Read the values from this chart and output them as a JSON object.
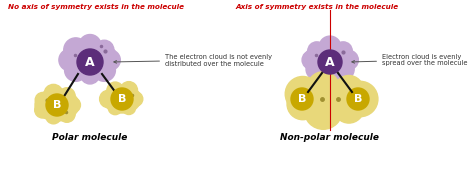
{
  "bg_color": "#ffffff",
  "left_title": "No axis of symmetry exists in the molecule",
  "right_title": "Axis of symmetry exists in the molecule",
  "left_label": "Polar molecule",
  "right_label": "Non-polar molecule",
  "left_annotation": "The electron cloud is not evenly\ndistributed over the molecule",
  "right_annotation": "Electron cloud is evenly\nspread over the molecule",
  "title_color": "#cc0000",
  "label_color": "#000000",
  "annotation_color": "#333333",
  "purple_cloud_color": "#c4a8d4",
  "purple_dark": "#5c2d7a",
  "yellow_cloud_color": "#e8d87a",
  "yellow_dark": "#c8a800",
  "bond_color": "#111111",
  "axis_line_color": "#cc0000",
  "dot_color_purple": "#8a6a9a",
  "dot_color_yellow": "#a09030"
}
